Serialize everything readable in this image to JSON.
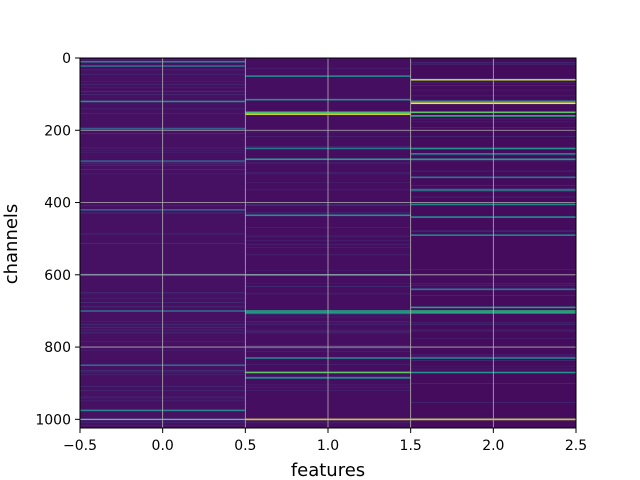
{
  "chart_data": {
    "type": "heatmap",
    "title": "",
    "xlabel": "features",
    "ylabel": "channels",
    "colormap": "viridis",
    "xlim": [
      -0.5,
      2.5
    ],
    "ylim": [
      1024,
      0
    ],
    "y_inverted": true,
    "grid": true,
    "n_features": 3,
    "n_channels": 1024,
    "x_ticks": [
      -0.5,
      0.0,
      0.5,
      1.0,
      1.5,
      2.0,
      2.5
    ],
    "x_tick_labels": [
      "−0.5",
      "0.0",
      "0.5",
      "1.0",
      "1.5",
      "2.0",
      "2.5"
    ],
    "y_ticks": [
      0,
      200,
      400,
      600,
      800,
      1000
    ],
    "y_tick_labels": [
      "0",
      "200",
      "400",
      "600",
      "800",
      "1000"
    ],
    "columns": [
      {
        "feature": 0,
        "base_value": 0.06,
        "bright_channels": [
          {
            "channel": 10,
            "value": 0.45
          },
          {
            "channel": 22,
            "value": 0.35
          },
          {
            "channel": 120,
            "value": 0.5
          },
          {
            "channel": 195,
            "value": 0.3
          },
          {
            "channel": 285,
            "value": 0.3
          },
          {
            "channel": 420,
            "value": 0.3
          },
          {
            "channel": 600,
            "value": 0.3
          },
          {
            "channel": 700,
            "value": 0.35
          },
          {
            "channel": 850,
            "value": 0.35
          },
          {
            "channel": 975,
            "value": 0.45
          },
          {
            "channel": 1000,
            "value": 0.3
          }
        ]
      },
      {
        "feature": 1,
        "base_value": 0.05,
        "bright_channels": [
          {
            "channel": 50,
            "value": 0.45
          },
          {
            "channel": 115,
            "value": 0.5
          },
          {
            "channel": 150,
            "value": 0.7
          },
          {
            "channel": 155,
            "value": 0.95
          },
          {
            "channel": 250,
            "value": 0.4
          },
          {
            "channel": 280,
            "value": 0.55
          },
          {
            "channel": 435,
            "value": 0.5
          },
          {
            "channel": 600,
            "value": 0.45
          },
          {
            "channel": 700,
            "value": 0.6
          },
          {
            "channel": 705,
            "value": 0.55
          },
          {
            "channel": 830,
            "value": 0.45
          },
          {
            "channel": 870,
            "value": 0.75
          },
          {
            "channel": 885,
            "value": 0.5
          },
          {
            "channel": 1000,
            "value": 0.95
          }
        ]
      },
      {
        "feature": 2,
        "base_value": 0.04,
        "bright_channels": [
          {
            "channel": 60,
            "value": 0.9
          },
          {
            "channel": 120,
            "value": 0.55
          },
          {
            "channel": 125,
            "value": 1.0
          },
          {
            "channel": 150,
            "value": 0.75
          },
          {
            "channel": 160,
            "value": 0.65
          },
          {
            "channel": 250,
            "value": 0.5
          },
          {
            "channel": 265,
            "value": 0.45
          },
          {
            "channel": 280,
            "value": 0.55
          },
          {
            "channel": 330,
            "value": 0.4
          },
          {
            "channel": 365,
            "value": 0.45
          },
          {
            "channel": 405,
            "value": 0.45
          },
          {
            "channel": 440,
            "value": 0.5
          },
          {
            "channel": 490,
            "value": 0.45
          },
          {
            "channel": 640,
            "value": 0.4
          },
          {
            "channel": 690,
            "value": 0.55
          },
          {
            "channel": 700,
            "value": 0.65
          },
          {
            "channel": 705,
            "value": 0.6
          },
          {
            "channel": 830,
            "value": 0.45
          },
          {
            "channel": 870,
            "value": 0.5
          },
          {
            "channel": 1000,
            "value": 0.95
          }
        ]
      }
    ]
  }
}
